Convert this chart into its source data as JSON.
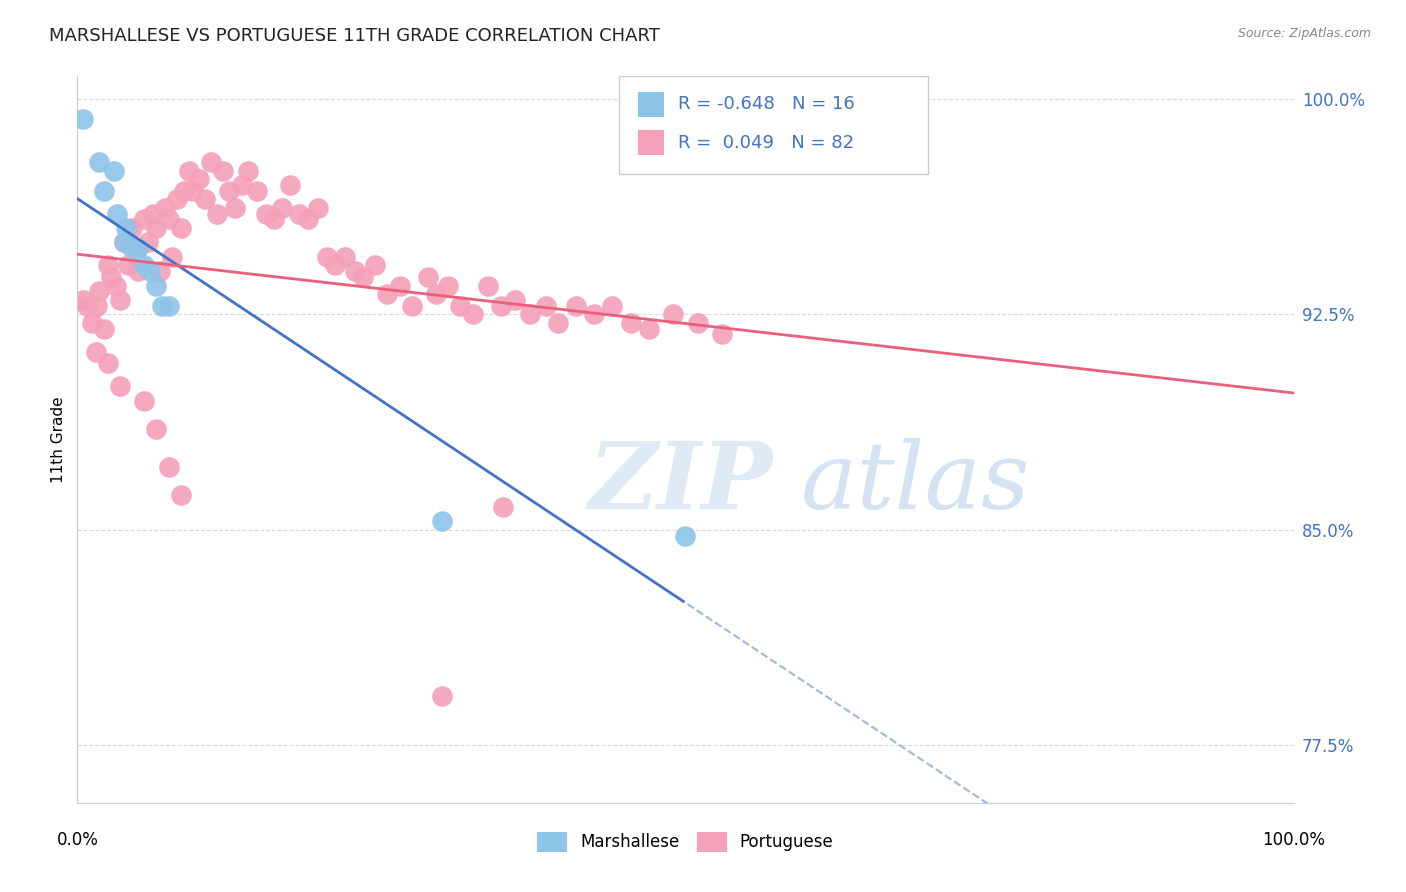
{
  "title": "MARSHALLESE VS PORTUGUESE 11TH GRADE CORRELATION CHART",
  "source": "Source: ZipAtlas.com",
  "ylabel": "11th Grade",
  "y_ticks": [
    0.775,
    0.85,
    0.925,
    1.0
  ],
  "y_tick_labels": [
    "77.5%",
    "85.0%",
    "92.5%",
    "100.0%"
  ],
  "legend_marshallese": "Marshallese",
  "legend_portuguese": "Portuguese",
  "r_marshallese": "-0.648",
  "n_marshallese": "16",
  "r_portuguese": "0.049",
  "n_portuguese": "82",
  "marshallese_color": "#8EC4E8",
  "portuguese_color": "#F4A0B8",
  "marshallese_line_color": "#4472C4",
  "portuguese_line_color": "#E8607A",
  "dashed_line_color": "#A0B8D8",
  "watermark_zip": "ZIP",
  "watermark_atlas": "atlas",
  "background_color": "#FFFFFF",
  "grid_color": "#D8D8D8",
  "marshallese_x": [
    0.005,
    0.018,
    0.022,
    0.03,
    0.033,
    0.038,
    0.04,
    0.045,
    0.05,
    0.055,
    0.06,
    0.065,
    0.07,
    0.075,
    0.3,
    0.5
  ],
  "marshallese_y": [
    0.993,
    0.978,
    0.968,
    0.975,
    0.96,
    0.95,
    0.955,
    0.948,
    0.948,
    0.942,
    0.94,
    0.935,
    0.928,
    0.928,
    0.853,
    0.848
  ],
  "portuguese_x": [
    0.005,
    0.008,
    0.012,
    0.016,
    0.018,
    0.022,
    0.025,
    0.028,
    0.032,
    0.035,
    0.038,
    0.042,
    0.045,
    0.048,
    0.05,
    0.055,
    0.058,
    0.062,
    0.065,
    0.068,
    0.072,
    0.075,
    0.078,
    0.082,
    0.085,
    0.088,
    0.092,
    0.095,
    0.1,
    0.105,
    0.11,
    0.115,
    0.12,
    0.125,
    0.13,
    0.135,
    0.14,
    0.148,
    0.155,
    0.162,
    0.168,
    0.175,
    0.182,
    0.19,
    0.198,
    0.205,
    0.212,
    0.22,
    0.228,
    0.235,
    0.245,
    0.255,
    0.265,
    0.275,
    0.288,
    0.295,
    0.305,
    0.315,
    0.325,
    0.338,
    0.348,
    0.36,
    0.372,
    0.385,
    0.395,
    0.41,
    0.425,
    0.44,
    0.455,
    0.47,
    0.49,
    0.51,
    0.53,
    0.015,
    0.025,
    0.035,
    0.055,
    0.065,
    0.075,
    0.085,
    0.3,
    0.35
  ],
  "portuguese_y": [
    0.93,
    0.928,
    0.922,
    0.928,
    0.933,
    0.92,
    0.942,
    0.938,
    0.935,
    0.93,
    0.95,
    0.942,
    0.955,
    0.948,
    0.94,
    0.958,
    0.95,
    0.96,
    0.955,
    0.94,
    0.962,
    0.958,
    0.945,
    0.965,
    0.955,
    0.968,
    0.975,
    0.968,
    0.972,
    0.965,
    0.978,
    0.96,
    0.975,
    0.968,
    0.962,
    0.97,
    0.975,
    0.968,
    0.96,
    0.958,
    0.962,
    0.97,
    0.96,
    0.958,
    0.962,
    0.945,
    0.942,
    0.945,
    0.94,
    0.938,
    0.942,
    0.932,
    0.935,
    0.928,
    0.938,
    0.932,
    0.935,
    0.928,
    0.925,
    0.935,
    0.928,
    0.93,
    0.925,
    0.928,
    0.922,
    0.928,
    0.925,
    0.928,
    0.922,
    0.92,
    0.925,
    0.922,
    0.918,
    0.912,
    0.908,
    0.9,
    0.895,
    0.885,
    0.872,
    0.862,
    0.792,
    0.858
  ]
}
